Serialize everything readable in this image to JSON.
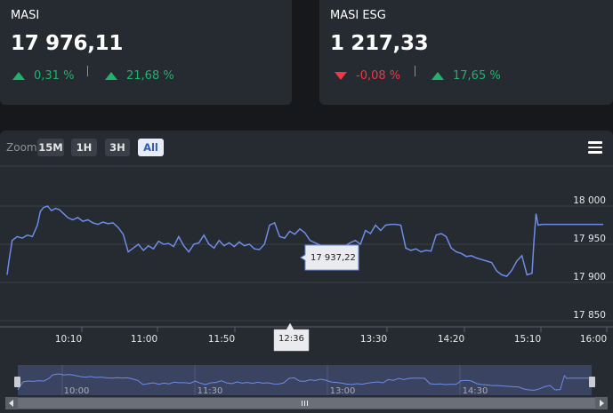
{
  "cards": [
    {
      "name": "MASI",
      "value": "17 976,11",
      "changes": [
        {
          "dir": "up",
          "text": "0,31 %"
        },
        {
          "dir": "up",
          "text": "21,68 %"
        }
      ]
    },
    {
      "name": "MASI ESG",
      "value": "1 217,33",
      "changes": [
        {
          "dir": "down",
          "text": "-0,08 %"
        },
        {
          "dir": "up",
          "text": "17,65 %"
        }
      ]
    }
  ],
  "zoom": {
    "label": "Zoom",
    "buttons": [
      "15M",
      "1H",
      "3H",
      "All"
    ],
    "active": "All"
  },
  "colors": {
    "up": "#1fb36b",
    "down": "#f23645",
    "line": "#6d8ce8",
    "bg": "#262a31"
  },
  "icons": {
    "menu": "hamburger-menu-icon",
    "scroll_left": "scroll-left-arrow-icon",
    "scroll_right": "scroll-right-arrow-icon",
    "grip": "scrollbar-grip-icon"
  },
  "tooltip": {
    "value": "17 937,22",
    "time": "12:36"
  },
  "navigator": {
    "labels": [
      "10:00",
      "11:30",
      "13:00",
      "14:30"
    ]
  },
  "chart_data": {
    "type": "line",
    "series": [
      {
        "values": [
          [
            580,
            17910
          ],
          [
            582,
            17930
          ],
          [
            585,
            17955
          ],
          [
            590,
            17960
          ],
          [
            595,
            17958
          ],
          [
            600,
            17962
          ],
          [
            605,
            17960
          ],
          [
            610,
            17975
          ],
          [
            613,
            17993
          ],
          [
            616,
            17998
          ],
          [
            620,
            18000
          ],
          [
            624,
            17994
          ],
          [
            628,
            17997
          ],
          [
            632,
            17995
          ],
          [
            636,
            17990
          ],
          [
            640,
            17985
          ],
          [
            645,
            17982
          ],
          [
            650,
            17985
          ],
          [
            655,
            17980
          ],
          [
            660,
            17982
          ],
          [
            665,
            17978
          ],
          [
            670,
            17976
          ],
          [
            675,
            17979
          ],
          [
            680,
            17977
          ],
          [
            685,
            17978
          ],
          [
            690,
            17972
          ],
          [
            695,
            17963
          ],
          [
            700,
            17940
          ],
          [
            705,
            17945
          ],
          [
            710,
            17950
          ],
          [
            715,
            17942
          ],
          [
            720,
            17948
          ],
          [
            725,
            17944
          ],
          [
            730,
            17954
          ],
          [
            735,
            17950
          ],
          [
            740,
            17951
          ],
          [
            745,
            17947
          ],
          [
            750,
            17960
          ],
          [
            755,
            17948
          ],
          [
            760,
            17940
          ],
          [
            765,
            17950
          ],
          [
            770,
            17952
          ],
          [
            775,
            17962
          ],
          [
            780,
            17950
          ],
          [
            785,
            17945
          ],
          [
            790,
            17955
          ],
          [
            795,
            17948
          ],
          [
            800,
            17952
          ],
          [
            805,
            17947
          ],
          [
            810,
            17953
          ],
          [
            815,
            17948
          ],
          [
            820,
            17950
          ],
          [
            825,
            17944
          ],
          [
            830,
            17943
          ],
          [
            835,
            17950
          ],
          [
            840,
            17975
          ],
          [
            845,
            17978
          ],
          [
            850,
            17960
          ],
          [
            855,
            17958
          ],
          [
            860,
            17967
          ],
          [
            865,
            17963
          ],
          [
            870,
            17970
          ],
          [
            875,
            17965
          ],
          [
            880,
            17955
          ],
          [
            885,
            17952
          ],
          [
            890,
            17949
          ],
          [
            895,
            17943
          ],
          [
            900,
            17940
          ],
          [
            905,
            17945
          ],
          [
            910,
            17942
          ],
          [
            915,
            17948
          ],
          [
            920,
            17952
          ],
          [
            925,
            17955
          ],
          [
            930,
            17950
          ],
          [
            935,
            17968
          ],
          [
            940,
            17964
          ],
          [
            945,
            17975
          ],
          [
            950,
            17968
          ],
          [
            955,
            17975
          ],
          [
            960,
            17976
          ],
          [
            965,
            17976
          ],
          [
            970,
            17975
          ],
          [
            975,
            17945
          ],
          [
            980,
            17942
          ],
          [
            985,
            17944
          ],
          [
            990,
            17940
          ],
          [
            995,
            17942
          ],
          [
            1000,
            17941
          ],
          [
            1005,
            17962
          ],
          [
            1010,
            17964
          ],
          [
            1015,
            17960
          ],
          [
            1020,
            17945
          ],
          [
            1025,
            17940
          ],
          [
            1030,
            17938
          ],
          [
            1035,
            17934
          ],
          [
            1040,
            17935
          ],
          [
            1045,
            17932
          ],
          [
            1050,
            17930
          ],
          [
            1055,
            17928
          ],
          [
            1060,
            17926
          ],
          [
            1065,
            17915
          ],
          [
            1070,
            17910
          ],
          [
            1075,
            17908
          ],
          [
            1080,
            17916
          ],
          [
            1085,
            17928
          ],
          [
            1090,
            17935
          ],
          [
            1095,
            17910
          ],
          [
            1100,
            17912
          ],
          [
            1102,
            17955
          ],
          [
            1104,
            17990
          ],
          [
            1106,
            17975
          ],
          [
            1110,
            17976
          ],
          [
            1115,
            17976
          ],
          [
            1120,
            17976
          ],
          [
            1125,
            17976
          ],
          [
            1130,
            17976
          ]
        ]
      }
    ],
    "x_ticks": [
      "10:10",
      "11:00",
      "11:50",
      "12:36",
      "13:30",
      "14:20",
      "15:10",
      "16:00"
    ],
    "y_ticks": [
      18000,
      17950,
      17900,
      17850
    ],
    "ylim": [
      17840,
      18020
    ]
  }
}
